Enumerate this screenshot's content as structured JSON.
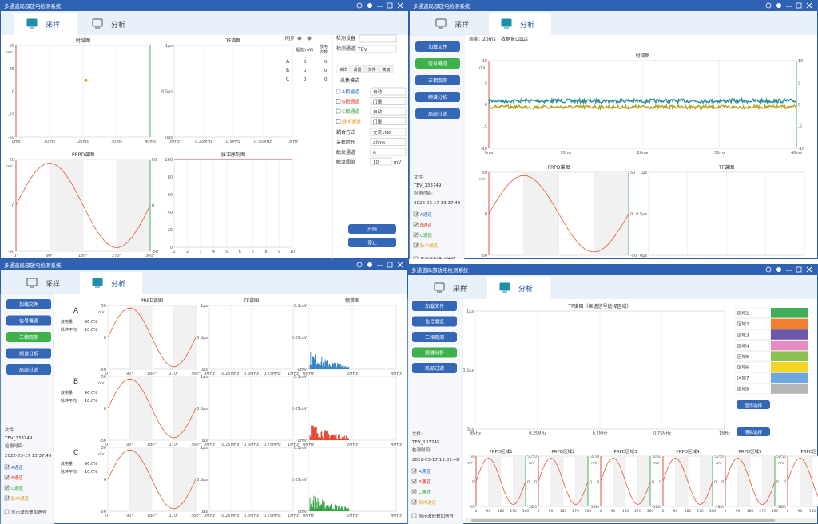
{
  "windows": [
    {
      "title": "多通道局部放电检测系统",
      "tabs": [
        "采样",
        "分析"
      ],
      "active_tab": 0,
      "charts": [
        {
          "title": "时域图",
          "unit": "mV",
          "xticks": [
            "0ms",
            "10ms",
            "20ms",
            "30ms",
            "40ms"
          ],
          "yticks": [
            "50",
            "25",
            "0",
            "-25",
            "-50"
          ]
        },
        {
          "title": "TF谱图",
          "xticks": [
            "0MHz",
            "0.25MHz",
            "0.5MHz",
            "0.75MHz",
            "1MHz"
          ],
          "yticks": [
            "1μs",
            "0.5μs",
            "0μs"
          ]
        },
        {
          "title": "PRPD谱图",
          "unit": "mV",
          "xticks": [
            "0°",
            "90°",
            "180°",
            "270°",
            "360°"
          ],
          "yticks": [
            "50",
            "0",
            "-50"
          ]
        },
        {
          "title": "脉冲序列图",
          "xticks": [
            "1",
            "2",
            "3",
            "4",
            "5",
            "6",
            "7",
            "8",
            "9",
            "10"
          ],
          "yticks": [
            "100",
            "80",
            "60",
            "40",
            "20",
            "0"
          ]
        }
      ],
      "panel": {
        "sync": "同步",
        "headers": [
          "幅值(mV)",
          "放电",
          "次数"
        ],
        "rows": [
          {
            "phase": "A",
            "amp": "0",
            "count": "0"
          },
          {
            "phase": "B",
            "amp": "0",
            "count": "0"
          },
          {
            "phase": "C",
            "amp": "0",
            "count": "0"
          }
        ],
        "device_label": "检测设备",
        "channel_label": "检测通道",
        "channel": "TEV",
        "subtabs": [
          "采样",
          "设置",
          "文件",
          "高级"
        ],
        "mode": "采集模式",
        "channels": [
          {
            "name": "A相通道",
            "mode": "自动"
          },
          {
            "name": "B相通道",
            "mode": "门限"
          },
          {
            "name": "C相通道",
            "mode": "自动"
          },
          {
            "name": "脉冲通道",
            "mode": "门限"
          }
        ],
        "settings": [
          {
            "name": "耦合方式",
            "value": "交流1MΩ"
          },
          {
            "name": "采样时长",
            "value": "40ms"
          },
          {
            "name": "触发通道",
            "value": "A"
          }
        ],
        "threshold": {
          "name": "触发阈值",
          "value": "10",
          "unit": "mV"
        },
        "buttons": [
          "开始",
          "停止"
        ]
      }
    },
    {
      "title": "多通道局部放电检测系统",
      "tabs": [
        "采样",
        "分析"
      ],
      "active_tab": 1,
      "sidebar": [
        "加载文件",
        "信号概览",
        "三相观测",
        "频谱分析",
        "局部过滤"
      ],
      "active_button": 1,
      "header": [
        {
          "label": "周期:",
          "value": "20ms"
        },
        {
          "label": "数据窗口:",
          "value": "1μs"
        }
      ],
      "charts": [
        {
          "title": "时域图",
          "unit": "mV",
          "xticks": [
            "0ms",
            "10ms",
            "20ms",
            "30ms",
            "40ms"
          ],
          "yticks": [
            "10",
            "5",
            "0",
            "-5",
            "-10"
          ]
        },
        {
          "title": "PRPD谱图",
          "unit": "mV",
          "xticks": [
            "0°",
            "90°",
            "180°",
            "270°",
            "360°"
          ],
          "yticks": [
            "50",
            "0",
            "-50"
          ]
        },
        {
          "title": "TF谱图",
          "xticks": [
            "0MHz",
            "0.25MHz",
            "0.5MHz",
            "0.75MHz",
            "1MHz"
          ],
          "yticks": [
            "1μs",
            "0.5μs",
            "0μs"
          ]
        }
      ],
      "file": {
        "label": "文件:",
        "name": "TEV_133749",
        "time_label": "检测时间:",
        "time": "2022-03-17 13:37:49",
        "channels": [
          {
            "name": "A通道",
            "color": "#2f6fc0"
          },
          {
            "name": "B通道",
            "color": "#e0402a"
          },
          {
            "name": "C通道",
            "color": "#2e9e3e"
          },
          {
            "name": "脉冲通道",
            "color": "#e0a020"
          }
        ],
        "overlay": "显示波形叠加信号"
      }
    },
    {
      "title": "多通道局部放电检测系统",
      "tabs": [
        "采样",
        "分析"
      ],
      "active_tab": 1,
      "sidebar": [
        "加载文件",
        "信号概览",
        "三相观测",
        "频谱分析",
        "局部过滤"
      ],
      "active_button": 2,
      "columns": [
        {
          "title": "PRPD谱图",
          "unit": "mV",
          "xticks": [
            "0°",
            "90°",
            "180°",
            "270°",
            "360°"
          ],
          "yticks": [
            "50",
            "0",
            "-50"
          ]
        },
        {
          "title": "TF谱图",
          "xticks": [
            "0MHz",
            "0.25MHz",
            "0.5MHz",
            "0.75MHz",
            "1MHz"
          ],
          "yticks": [
            "1μs",
            "0.5μs",
            "0μs"
          ]
        },
        {
          "title": "频谱图",
          "xticks": [
            "0MHz",
            "2MHz",
            "4MHz"
          ],
          "yticks": [
            "0.1mV",
            "0.05mV",
            "0mV"
          ]
        }
      ],
      "phases": [
        {
          "name": "A",
          "color": "#2f7fc0",
          "stats": [
            {
              "label": "放电量",
              "value": "96.0%"
            },
            {
              "label": "脉冲平均",
              "value": "10.0%"
            }
          ]
        },
        {
          "name": "B",
          "color": "#e0402a",
          "stats": [
            {
              "label": "放电量",
              "value": "96.0%"
            },
            {
              "label": "脉冲平均",
              "value": "10.0%"
            }
          ]
        },
        {
          "name": "C",
          "color": "#2e9e3e",
          "stats": [
            {
              "label": "放电量",
              "value": "96.0%"
            },
            {
              "label": "脉冲平均",
              "value": "10.0%"
            }
          ]
        }
      ],
      "file": {
        "label": "文件:",
        "name": "TEV_133749",
        "time_label": "检测时间:",
        "time": "2022-03-17 13:37:49",
        "channels": [
          {
            "name": "A通道",
            "color": "#2f6fc0"
          },
          {
            "name": "B通道",
            "color": "#e0402a"
          },
          {
            "name": "C通道",
            "color": "#2e9e3e"
          },
          {
            "name": "脉冲通道",
            "color": "#e0a020"
          }
        ],
        "overlay": "显示波形叠加信号"
      }
    },
    {
      "title": "多通道局部放电检测系统",
      "tabs": [
        "采样",
        "分析"
      ],
      "active_tab": 1,
      "sidebar": [
        "加载文件",
        "信号概览",
        "三相观测",
        "频谱分析",
        "局部过滤"
      ],
      "active_button": 3,
      "chart": {
        "title": "TF谱图（框选信号选择区域）",
        "xticks": [
          "0MHz",
          "0.25MHz",
          "0.5MHz",
          "0.75MHz",
          "1MHz"
        ],
        "yticks": [
          "1μs",
          "0.5μs",
          "0μs"
        ]
      },
      "regions": [
        {
          "name": "区域1",
          "color": "#3fae5a"
        },
        {
          "name": "区域2",
          "color": "#f07f2f"
        },
        {
          "name": "区域3",
          "color": "#6a58a8"
        },
        {
          "name": "区域4",
          "color": "#e58cc2"
        },
        {
          "name": "区域5",
          "color": "#8cc152"
        },
        {
          "name": "区域6",
          "color": "#f5d327"
        },
        {
          "name": "区域7",
          "color": "#6fa8dc"
        },
        {
          "name": "区域8",
          "color": "#b5b5b5"
        }
      ],
      "buttons": [
        "显示选择",
        "清除选择"
      ],
      "prpd": {
        "titles": [
          "PRPD区域1",
          "PRPD区域2",
          "PRPD区域3",
          "PRPD区域4",
          "PRPD区域5",
          "PRPD区域6"
        ],
        "unit": "mV",
        "xticks": [
          "0",
          "90",
          "180",
          "270",
          "360"
        ],
        "yticks": [
          "50",
          "0",
          "-50"
        ]
      },
      "file": {
        "label": "文件:",
        "name": "TEV_133749",
        "time_label": "检测时间:",
        "time": "2022-03-17 13:37:49",
        "channels": [
          {
            "name": "A通道",
            "color": "#2f6fc0"
          },
          {
            "name": "B通道",
            "color": "#e0402a"
          },
          {
            "name": "C通道",
            "color": "#2e9e3e"
          },
          {
            "name": "脉冲通道",
            "color": "#e0a020"
          }
        ],
        "overlay": "显示波形叠加信号"
      }
    }
  ]
}
